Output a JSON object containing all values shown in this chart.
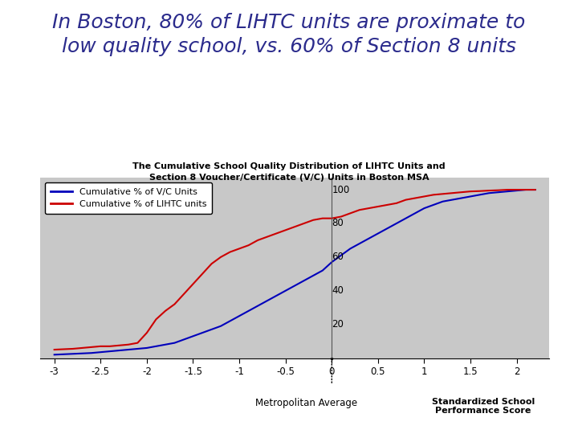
{
  "title_main": "In Boston, 80% of LIHTC units are proximate to\nlow quality school, vs. 60% of Section 8 units",
  "chart_title": "The Cumulative School Quality Distribution of LIHTC Units and\nSection 8 Voucher/Certificate (V/C) Units in Boston MSA",
  "xlabel_metro": "Metropolitan Average",
  "xlabel_score": "Standardized School\nPerformance Score",
  "legend_vc": "Cumulative % of V/C Units",
  "legend_lihtc": "Cumulative % of LIHTC units",
  "xlim": [
    -3.15,
    2.35
  ],
  "ylim": [
    0,
    107
  ],
  "yticks": [
    20,
    40,
    60,
    80,
    100
  ],
  "xticks": [
    -3,
    -2.5,
    -2,
    -1.5,
    -1,
    -0.5,
    0,
    0.5,
    1,
    1.5,
    2
  ],
  "xtick_labels": [
    "-3",
    "-2.5",
    "-2",
    "-1.5",
    "-1",
    "-0.5",
    "0",
    "0.5",
    "1",
    "1.5",
    "2"
  ],
  "bg_color": "#c8c8c8",
  "main_title_color": "#2b2b8c",
  "chart_title_color": "#000000",
  "vc_color": "#0000bb",
  "lihtc_color": "#cc0000",
  "vc_x": [
    -3.0,
    -2.8,
    -2.6,
    -2.5,
    -2.4,
    -2.3,
    -2.2,
    -2.1,
    -2.0,
    -1.9,
    -1.8,
    -1.7,
    -1.6,
    -1.5,
    -1.4,
    -1.3,
    -1.2,
    -1.1,
    -1.0,
    -0.9,
    -0.8,
    -0.7,
    -0.6,
    -0.5,
    -0.4,
    -0.3,
    -0.2,
    -0.1,
    0.0,
    0.1,
    0.2,
    0.3,
    0.4,
    0.5,
    0.6,
    0.7,
    0.8,
    0.9,
    1.0,
    1.1,
    1.2,
    1.3,
    1.4,
    1.5,
    1.6,
    1.7,
    1.8,
    1.9,
    2.0,
    2.1,
    2.2
  ],
  "vc_y": [
    2,
    2.5,
    3,
    3.5,
    4,
    4.5,
    5,
    5.5,
    6,
    7,
    8,
    9,
    11,
    13,
    15,
    17,
    19,
    22,
    25,
    28,
    31,
    34,
    37,
    40,
    43,
    46,
    49,
    52,
    57,
    61,
    65,
    68,
    71,
    74,
    77,
    80,
    83,
    86,
    89,
    91,
    93,
    94,
    95,
    96,
    97,
    98,
    98.5,
    99,
    99.5,
    100,
    100
  ],
  "lihtc_x": [
    -3.0,
    -2.8,
    -2.7,
    -2.6,
    -2.5,
    -2.4,
    -2.3,
    -2.2,
    -2.1,
    -2.0,
    -1.9,
    -1.8,
    -1.7,
    -1.6,
    -1.5,
    -1.4,
    -1.3,
    -1.2,
    -1.1,
    -1.0,
    -0.9,
    -0.8,
    -0.7,
    -0.6,
    -0.5,
    -0.4,
    -0.3,
    -0.2,
    -0.1,
    0.0,
    0.1,
    0.2,
    0.3,
    0.4,
    0.5,
    0.6,
    0.7,
    0.8,
    0.9,
    1.0,
    1.1,
    1.2,
    1.3,
    1.4,
    1.5,
    1.6,
    1.7,
    1.8,
    1.9,
    2.0,
    2.1,
    2.2
  ],
  "lihtc_y": [
    5,
    5.5,
    6,
    6.5,
    7,
    7,
    7.5,
    8,
    9,
    15,
    23,
    28,
    32,
    38,
    44,
    50,
    56,
    60,
    63,
    65,
    67,
    70,
    72,
    74,
    76,
    78,
    80,
    82,
    83,
    83,
    84,
    86,
    88,
    89,
    90,
    91,
    92,
    94,
    95,
    96,
    97,
    97.5,
    98,
    98.5,
    99,
    99.2,
    99.5,
    99.7,
    100,
    100,
    100,
    100
  ]
}
